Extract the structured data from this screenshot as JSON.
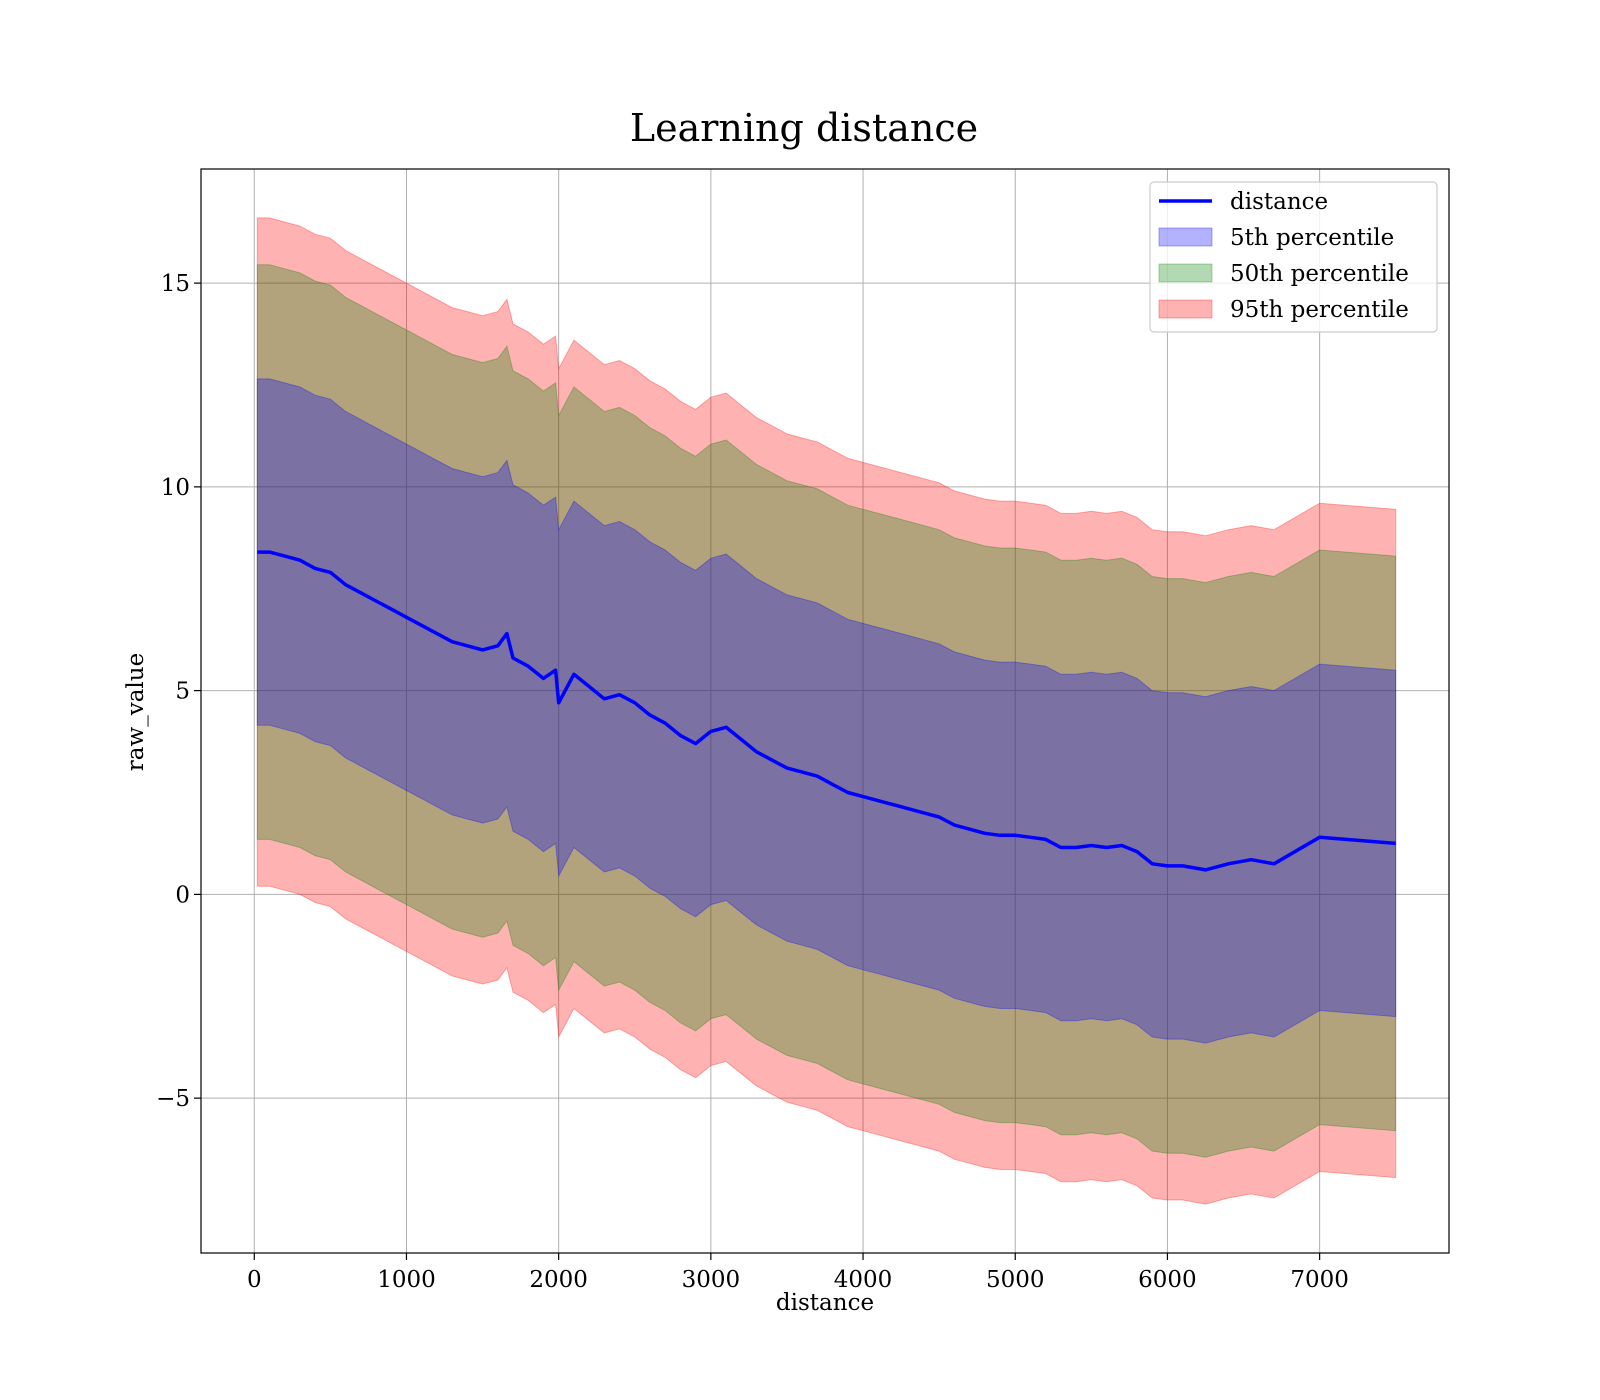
{
  "chart_data": {
    "type": "area",
    "title": "Learning distance",
    "xlabel": "distance",
    "ylabel": "raw_value",
    "xlim": [
      -350,
      7850
    ],
    "ylim": [
      -8.8,
      17.8
    ],
    "xticks": [
      0,
      1000,
      2000,
      3000,
      4000,
      5000,
      6000,
      7000
    ],
    "yticks": [
      -5,
      0,
      5,
      10,
      15
    ],
    "ytick_labels": [
      "−5",
      "0",
      "5",
      "10",
      "15"
    ],
    "grid": true,
    "legend_position": "top-right",
    "x": [
      20,
      100,
      200,
      300,
      400,
      500,
      600,
      700,
      800,
      900,
      1000,
      1100,
      1200,
      1300,
      1400,
      1500,
      1600,
      1660,
      1700,
      1800,
      1900,
      1980,
      2000,
      2100,
      2200,
      2300,
      2400,
      2500,
      2600,
      2700,
      2800,
      2900,
      3000,
      3100,
      3200,
      3300,
      3400,
      3500,
      3600,
      3700,
      3800,
      3900,
      4000,
      4100,
      4200,
      4300,
      4400,
      4500,
      4600,
      4700,
      4800,
      4900,
      5000,
      5100,
      5200,
      5300,
      5400,
      5500,
      5600,
      5700,
      5800,
      5900,
      6000,
      6100,
      6250,
      6400,
      6550,
      6700,
      7000,
      7500
    ],
    "series": [
      {
        "name": "distance",
        "kind": "line",
        "color": "#0000ff",
        "values": [
          8.4,
          8.4,
          8.3,
          8.2,
          8.0,
          7.9,
          7.6,
          7.4,
          7.2,
          7.0,
          6.8,
          6.6,
          6.4,
          6.2,
          6.1,
          6.0,
          6.1,
          6.4,
          5.8,
          5.6,
          5.3,
          5.5,
          4.7,
          5.4,
          5.1,
          4.8,
          4.9,
          4.7,
          4.4,
          4.2,
          3.9,
          3.7,
          4.0,
          4.1,
          3.8,
          3.5,
          3.3,
          3.1,
          3.0,
          2.9,
          2.7,
          2.5,
          2.4,
          2.3,
          2.2,
          2.1,
          2.0,
          1.9,
          1.7,
          1.6,
          1.5,
          1.45,
          1.45,
          1.4,
          1.35,
          1.15,
          1.15,
          1.2,
          1.15,
          1.2,
          1.05,
          0.75,
          0.7,
          0.7,
          0.6,
          0.75,
          0.85,
          0.75,
          1.4,
          1.25
        ]
      },
      {
        "name": "5th percentile",
        "kind": "band",
        "color": "#0000ff",
        "half_width": 4.25
      },
      {
        "name": "50th percentile",
        "kind": "band",
        "color": "#008000",
        "half_width": 7.05
      },
      {
        "name": "95th percentile",
        "kind": "band",
        "color": "#ff0000",
        "half_width": 8.2
      }
    ]
  }
}
